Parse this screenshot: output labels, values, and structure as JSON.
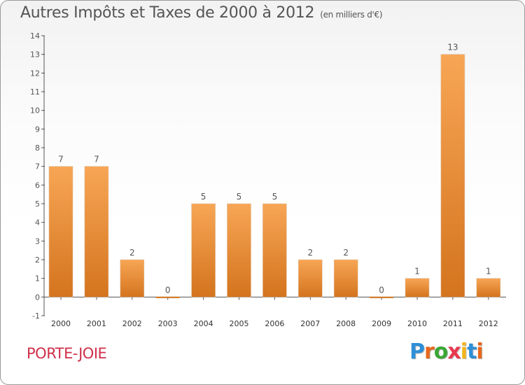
{
  "header": {
    "title": "Autres Impôts et Taxes de 2000 à 2012",
    "unit": "(en milliers d'€)"
  },
  "footer": {
    "commune": "PORTE-JOIE"
  },
  "logo": {
    "text": "Proxiti",
    "letter_colors": [
      "#2e8fd6",
      "#e8671c",
      "#3aa635",
      "#e8384d",
      "#f2b51b",
      "#2e8fd6",
      "#e8671c"
    ]
  },
  "colors": {
    "bar_light": "#f7a655",
    "bar_dark": "#d4741e",
    "axis": "#555555",
    "grid": "#9a9a9a",
    "label": "#555555",
    "title": "#555555",
    "commune": "#d0304a"
  },
  "chart_data": {
    "type": "bar",
    "title": "Autres Impôts et Taxes de 2000 à 2012",
    "subtitle": "(en milliers d'€)",
    "categories": [
      "2000",
      "2001",
      "2002",
      "2003",
      "2004",
      "2005",
      "2006",
      "2007",
      "2008",
      "2009",
      "2010",
      "2011",
      "2012"
    ],
    "values": [
      7,
      7,
      2,
      0,
      5,
      5,
      5,
      2,
      2,
      0,
      1,
      13,
      1
    ],
    "value_labels": [
      "7",
      "7",
      "2",
      "0",
      "5",
      "5",
      "5",
      "2",
      "2",
      "0",
      "1",
      "13",
      "1"
    ],
    "ylim": [
      -1,
      14
    ],
    "yticks": [
      -1,
      0,
      1,
      2,
      3,
      4,
      5,
      6,
      7,
      8,
      9,
      10,
      11,
      12,
      13,
      14
    ],
    "ytick_labels": [
      "-1",
      "0",
      "1",
      "2",
      "3",
      "4",
      "5",
      "6",
      "7",
      "8",
      "9",
      "10",
      "11",
      "12",
      "13",
      "14"
    ],
    "grid": false,
    "xlabel": "",
    "ylabel": ""
  }
}
